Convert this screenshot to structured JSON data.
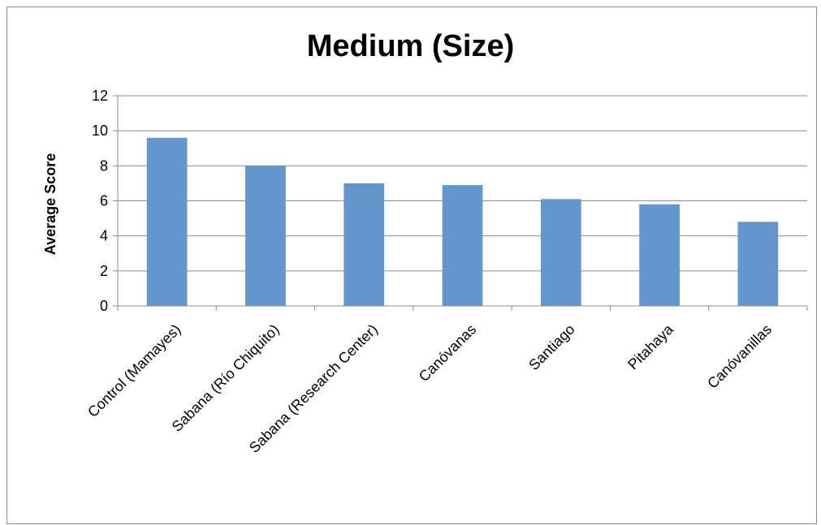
{
  "chart_data": {
    "type": "bar",
    "title": "Medium (Size)",
    "xlabel": "",
    "ylabel": "Average Score",
    "categories": [
      "Control (Mamayes)",
      "Sabana (Río Chiquito)",
      "Sabana (Research Center)",
      "Canóvanas",
      "Santiago",
      "Pitahaya",
      "Canóvanillas"
    ],
    "values": [
      9.6,
      8.0,
      7.0,
      6.9,
      6.1,
      5.8,
      4.8
    ],
    "ylim": [
      0,
      12
    ],
    "yticks": [
      0,
      2,
      4,
      6,
      8,
      10,
      12
    ],
    "grid": true,
    "legend": "none",
    "bar_color": "#6396cc",
    "grid_color": "#8c8c8c"
  }
}
